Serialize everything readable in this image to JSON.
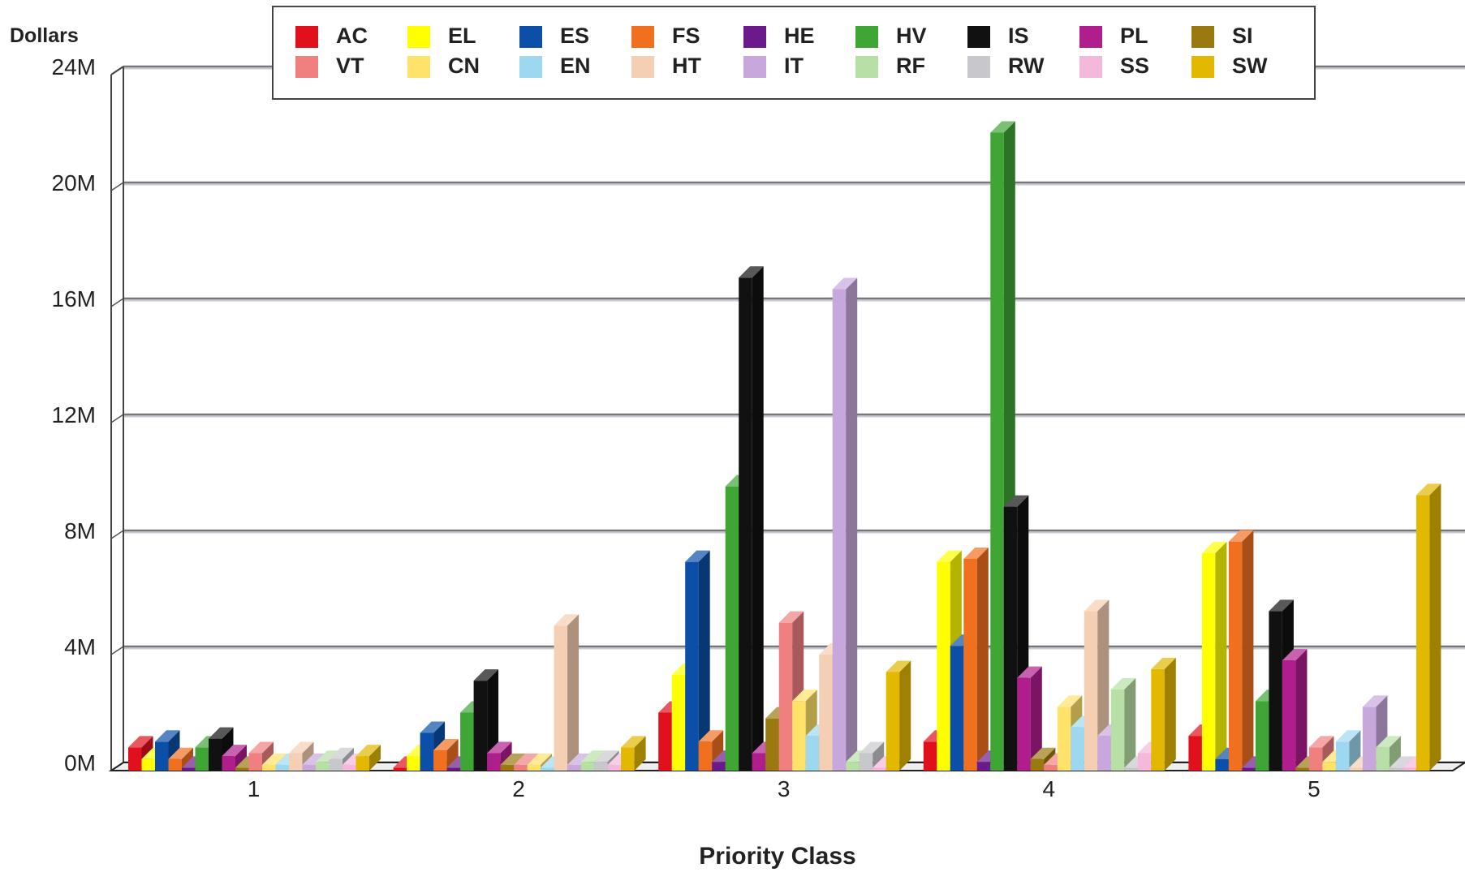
{
  "chart_data": {
    "type": "bar",
    "title": "",
    "ylabel": "Dollars",
    "xlabel": "Priority Class",
    "ylim": [
      0,
      24
    ],
    "y_unit_suffix": "M",
    "y_ticks": [
      "0M",
      "4M",
      "8M",
      "12M",
      "16M",
      "20M",
      "24M"
    ],
    "categories": [
      "1",
      "2",
      "3",
      "4",
      "5"
    ],
    "grid": true,
    "legend_position": "top",
    "series": [
      {
        "name": "AC",
        "color": "#e0101c",
        "values": [
          0.8,
          0.1,
          2.0,
          1.0,
          1.2
        ]
      },
      {
        "name": "EL",
        "color": "#ffff00",
        "values": [
          0.4,
          0.5,
          3.3,
          7.2,
          7.5
        ]
      },
      {
        "name": "ES",
        "color": "#0b4fa8",
        "values": [
          1.0,
          1.3,
          7.2,
          4.3,
          0.4
        ]
      },
      {
        "name": "FS",
        "color": "#f07020",
        "values": [
          0.4,
          0.7,
          1.0,
          7.3,
          7.9
        ]
      },
      {
        "name": "HE",
        "color": "#6a1a8a",
        "values": [
          0.1,
          0.1,
          0.3,
          0.3,
          0.1
        ]
      },
      {
        "name": "HV",
        "color": "#3fa535",
        "values": [
          0.8,
          2.0,
          9.8,
          22.0,
          2.4
        ]
      },
      {
        "name": "IS",
        "color": "#111111",
        "values": [
          1.1,
          3.1,
          17.0,
          9.1,
          5.5
        ]
      },
      {
        "name": "PL",
        "color": "#b01e8e",
        "values": [
          0.5,
          0.6,
          0.6,
          3.2,
          3.8
        ]
      },
      {
        "name": "SI",
        "color": "#9a7a10",
        "values": [
          0.1,
          0.2,
          1.8,
          0.4,
          0.1
        ]
      },
      {
        "name": "VT",
        "color": "#f08080",
        "values": [
          0.6,
          0.2,
          5.1,
          0.2,
          0.8
        ]
      },
      {
        "name": "CN",
        "color": "#ffe26a",
        "values": [
          0.2,
          0.2,
          2.4,
          2.2,
          0.3
        ]
      },
      {
        "name": "EN",
        "color": "#9ed8f0",
        "values": [
          0.2,
          0.1,
          1.2,
          1.5,
          1.0
        ]
      },
      {
        "name": "HT",
        "color": "#f5cfb3",
        "values": [
          0.6,
          5.0,
          4.0,
          5.5,
          0.1
        ]
      },
      {
        "name": "IT",
        "color": "#c8a8dc",
        "values": [
          0.2,
          0.2,
          16.6,
          1.2,
          2.2
        ]
      },
      {
        "name": "RF",
        "color": "#b8e0a6",
        "values": [
          0.3,
          0.3,
          0.3,
          2.8,
          0.8
        ]
      },
      {
        "name": "RW",
        "color": "#c8c8cc",
        "values": [
          0.4,
          0.3,
          0.6,
          0.1,
          0.1
        ]
      },
      {
        "name": "SS",
        "color": "#f4b8dc",
        "values": [
          0.2,
          0.2,
          0.1,
          0.6,
          0.1
        ]
      },
      {
        "name": "SW",
        "color": "#e2b800",
        "values": [
          0.5,
          0.8,
          3.4,
          3.5,
          9.5
        ]
      }
    ]
  }
}
